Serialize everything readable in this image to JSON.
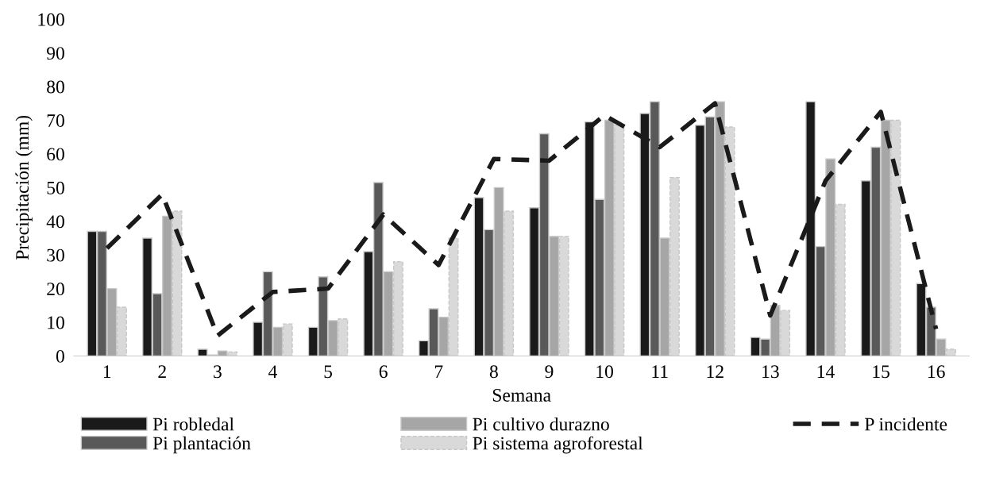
{
  "chart_data": {
    "type": "bar",
    "xlabel": "Semana",
    "ylabel": "Precipitación (mm)",
    "categories": [
      "1",
      "2",
      "3",
      "4",
      "5",
      "6",
      "7",
      "8",
      "9",
      "10",
      "11",
      "12",
      "13",
      "14",
      "15",
      "16"
    ],
    "ylim": [
      0,
      100
    ],
    "yticks": [
      0,
      10,
      20,
      30,
      40,
      50,
      60,
      70,
      80,
      90,
      100
    ],
    "grid": false,
    "legend": "bottom",
    "series": [
      {
        "name": "Pi robledal",
        "color": "#1a1a1a",
        "values": [
          37,
          35,
          2,
          10,
          8.5,
          31,
          4.5,
          47,
          44,
          69.5,
          72,
          68.5,
          5.5,
          75.5,
          52,
          21.5
        ]
      },
      {
        "name": "Pi plantación",
        "color": "#595959",
        "values": [
          37,
          18.5,
          0.3,
          25,
          23.5,
          51.5,
          14,
          37.5,
          66,
          46.5,
          75.5,
          71,
          5,
          32.5,
          62,
          14.5
        ]
      },
      {
        "name": "Pi cultivo durazno",
        "color": "#a6a6a6",
        "values": [
          20,
          41.5,
          1.5,
          8.5,
          10.5,
          25,
          11.5,
          50,
          35.5,
          70,
          35,
          75.5,
          15,
          58.5,
          70,
          5
        ]
      },
      {
        "name": "Pi sistema agroforestal",
        "color": "#d9d9d9",
        "values": [
          14.5,
          43,
          1.2,
          9.5,
          11,
          28,
          35,
          43,
          35.5,
          68.5,
          53,
          68,
          13.5,
          45,
          70,
          2
        ]
      },
      {
        "name": "P incidente",
        "type": "line",
        "color": "#1a1a1a",
        "line_style": "dashed",
        "marker": "none",
        "values": [
          32,
          48,
          6,
          19,
          20,
          42,
          27,
          58.5,
          58,
          71.5,
          62,
          75,
          12,
          52,
          72.5,
          8
        ]
      }
    ]
  }
}
